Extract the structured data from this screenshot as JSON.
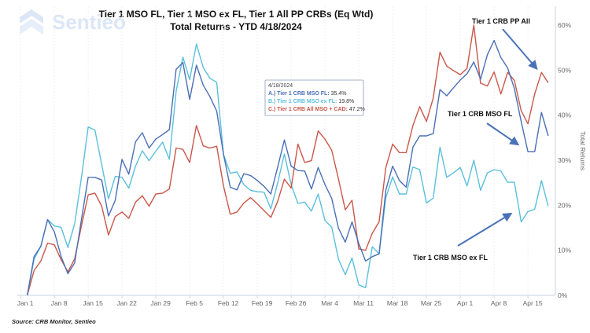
{
  "logo_text": "Sentieo",
  "source": "Source: CRB Monitor, Sentieo",
  "tooltip": {
    "date": "4/18/2024",
    "rows": [
      {
        "label": "A.) Tier 1 CRB MSO FL:",
        "value": "35.4%",
        "color": "#4a6fb5"
      },
      {
        "label": "B.) Tier 1 CRB MSO ex FL:",
        "value": "19.8%",
        "color": "#5bbfdc"
      },
      {
        "label": "C.) Tier 1 CRB All MSO + CAD:",
        "value": "47.2%",
        "color": "#c9574a"
      }
    ]
  },
  "annotations": [
    {
      "text": "Tier 1 CRB PP All"
    },
    {
      "text": "Tier 1 CRB MSO FL"
    },
    {
      "text": "Tier 1 CRB MSO ex FL"
    }
  ],
  "chart_data": {
    "type": "line",
    "title": "Tier 1 MSO FL, Tier 1 MSO ex FL, Tier 1 All PP CRBs (Eq Wtd)",
    "subtitle": "Total Returns -  YTD 4/18/2024",
    "xlabel": "",
    "ylabel": "Total Returns",
    "ylim": [
      0,
      60
    ],
    "y_ticks": [
      "0%",
      "10%",
      "20%",
      "30%",
      "40%",
      "50%",
      "60%"
    ],
    "y_axis_side": "right",
    "x_ticks": [
      {
        "date": "2024-01-01",
        "label": "Jan 1"
      },
      {
        "date": "2024-01-08",
        "label": "Jan 8"
      },
      {
        "date": "2024-01-15",
        "label": "Jan 15"
      },
      {
        "date": "2024-01-22",
        "label": "Jan 22"
      },
      {
        "date": "2024-01-29",
        "label": "Jan 29"
      },
      {
        "date": "2024-02-05",
        "label": "Feb 5"
      },
      {
        "date": "2024-02-12",
        "label": "Feb 12"
      },
      {
        "date": "2024-02-19",
        "label": "Feb 19"
      },
      {
        "date": "2024-02-26",
        "label": "Feb 26"
      },
      {
        "date": "2024-03-04",
        "label": "Mar 4"
      },
      {
        "date": "2024-03-11",
        "label": "Mar 11"
      },
      {
        "date": "2024-03-18",
        "label": "Mar 18"
      },
      {
        "date": "2024-03-25",
        "label": "Mar 25"
      },
      {
        "date": "2024-04-01",
        "label": "Apr 1"
      },
      {
        "date": "2024-04-08",
        "label": "Apr 8"
      },
      {
        "date": "2024-04-15",
        "label": "Apr 15"
      }
    ],
    "grid": "vertical",
    "x": [
      "2024-01-02",
      "2024-01-03",
      "2024-01-04",
      "2024-01-05",
      "2024-01-08",
      "2024-01-09",
      "2024-01-10",
      "2024-01-11",
      "2024-01-12",
      "2024-01-15",
      "2024-01-16",
      "2024-01-17",
      "2024-01-18",
      "2024-01-19",
      "2024-01-22",
      "2024-01-23",
      "2024-01-24",
      "2024-01-25",
      "2024-01-26",
      "2024-01-29",
      "2024-01-30",
      "2024-01-31",
      "2024-02-01",
      "2024-02-02",
      "2024-02-05",
      "2024-02-06",
      "2024-02-07",
      "2024-02-08",
      "2024-02-09",
      "2024-02-12",
      "2024-02-13",
      "2024-02-14",
      "2024-02-15",
      "2024-02-16",
      "2024-02-19",
      "2024-02-20",
      "2024-02-21",
      "2024-02-22",
      "2024-02-23",
      "2024-02-26",
      "2024-02-27",
      "2024-02-28",
      "2024-02-29",
      "2024-03-01",
      "2024-03-04",
      "2024-03-05",
      "2024-03-06",
      "2024-03-07",
      "2024-03-08",
      "2024-03-11",
      "2024-03-12",
      "2024-03-13",
      "2024-03-14",
      "2024-03-15",
      "2024-03-18",
      "2024-03-19",
      "2024-03-20",
      "2024-03-21",
      "2024-03-22",
      "2024-03-25",
      "2024-03-26",
      "2024-03-27",
      "2024-03-28",
      "2024-03-29",
      "2024-04-01",
      "2024-04-02",
      "2024-04-03",
      "2024-04-04",
      "2024-04-05",
      "2024-04-08",
      "2024-04-09",
      "2024-04-10",
      "2024-04-11",
      "2024-04-12",
      "2024-04-15",
      "2024-04-16",
      "2024-04-17",
      "2024-04-18"
    ],
    "series": [
      {
        "name": "A.) Tier 1 CRB MSO FL",
        "color": "#4a6fb5",
        "values": [
          0,
          8.6,
          10.9,
          16.8,
          14.1,
          8.6,
          4.8,
          7.2,
          16.8,
          26.2,
          26.2,
          25.6,
          17.6,
          21.1,
          30.2,
          26.9,
          34.1,
          36.1,
          32.7,
          34.7,
          35.7,
          36.8,
          50.2,
          51.7,
          43.5,
          51.1,
          46.7,
          44.1,
          40.9,
          31.3,
          24.0,
          23.4,
          27.0,
          26.6,
          25.5,
          24.2,
          22.5,
          28.4,
          34.5,
          28.7,
          27.7,
          27.6,
          23.6,
          28.4,
          24.6,
          21.5,
          14.9,
          11.8,
          16.3,
          11.5,
          7.6,
          8.6,
          9.2,
          23.4,
          28.7,
          25.5,
          24.0,
          32.9,
          35.4,
          35.4,
          35.9,
          45.7,
          44.3,
          46.1,
          47.8,
          49.2,
          51.8,
          48.0,
          53.4,
          56.6,
          52.8,
          50.5,
          45.9,
          38.6,
          31.9,
          31.9,
          40.6,
          35.4
        ]
      },
      {
        "name": "B.) Tier 1 CRB MSO ex FL",
        "color": "#5bbfdc",
        "values": [
          0,
          8.0,
          10.9,
          16.8,
          15.4,
          15.1,
          10.6,
          15.9,
          26.1,
          37.4,
          36.7,
          29.0,
          21.4,
          26.4,
          26.2,
          23.8,
          28.7,
          32.1,
          29.9,
          32.0,
          34.0,
          30.2,
          45.3,
          52.9,
          47.9,
          55.8,
          50.6,
          48.2,
          47.3,
          31.3,
          27.1,
          27.4,
          24.6,
          23.3,
          23.0,
          22.9,
          19.2,
          24.9,
          31.4,
          24.6,
          20.4,
          20.7,
          18.7,
          22.5,
          16.6,
          15.1,
          8.0,
          4.6,
          8.3,
          2.3,
          1.7,
          10.8,
          9.2,
          21.7,
          26.3,
          22.5,
          22.5,
          28.5,
          27.9,
          20.5,
          21.6,
          32.9,
          26.2,
          27.2,
          28.4,
          24.3,
          30.0,
          23.3,
          27.2,
          27.9,
          27.6,
          25.1,
          25.1,
          16.3,
          18.6,
          19.1,
          25.5,
          19.8
        ]
      },
      {
        "name": "C.) Tier 1 CRB All MSO + CAD",
        "color": "#c9574a",
        "values": [
          0,
          5.5,
          7.6,
          11.6,
          11.2,
          7.9,
          5.2,
          8.1,
          15.4,
          22.3,
          22.7,
          19.8,
          13.4,
          17.5,
          18.5,
          17.1,
          20.7,
          22.1,
          19.8,
          22.5,
          22.7,
          23.6,
          32.7,
          32.4,
          29.5,
          37.7,
          33.2,
          32.7,
          33.1,
          24.3,
          18.0,
          18.5,
          20.5,
          21.7,
          20.3,
          18.8,
          17.3,
          20.8,
          25.8,
          23.8,
          33.6,
          29.5,
          29.9,
          36.5,
          34.7,
          32.2,
          25.8,
          19.0,
          21.1,
          10.3,
          10.0,
          13.8,
          16.3,
          28.4,
          33.6,
          31.7,
          31.7,
          37.7,
          41.9,
          38.6,
          43.8,
          54.0,
          50.9,
          49.9,
          49.0,
          50.4,
          60.0,
          47.1,
          46.5,
          49.6,
          44.7,
          49.5,
          47.7,
          41.0,
          38.1,
          44.7,
          49.5,
          47.2
        ]
      }
    ]
  }
}
